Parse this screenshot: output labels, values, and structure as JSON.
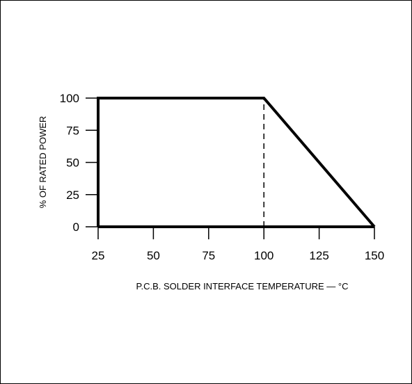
{
  "chart_data": {
    "type": "line",
    "title": "",
    "xlabel": "P.C.B. SOLDER INTERFACE TEMPERATURE — °C",
    "ylabel": "% OF RATED POWER",
    "x_ticks": [
      25,
      50,
      75,
      100,
      125,
      150
    ],
    "y_ticks": [
      0,
      25,
      50,
      75,
      100
    ],
    "xlim": [
      25,
      150
    ],
    "ylim": [
      0,
      100
    ],
    "grid": false,
    "series": [
      {
        "x": [
          25,
          25,
          100,
          150
        ],
        "y": [
          0,
          100,
          100,
          0
        ]
      }
    ],
    "baseline": {
      "x": [
        25,
        150
      ],
      "y": [
        0,
        0
      ]
    },
    "reference_line": {
      "x": 100,
      "y": [
        0,
        100
      ],
      "style": "dashed"
    },
    "colors": {
      "line": "#000000",
      "background": "#ffffff"
    }
  }
}
